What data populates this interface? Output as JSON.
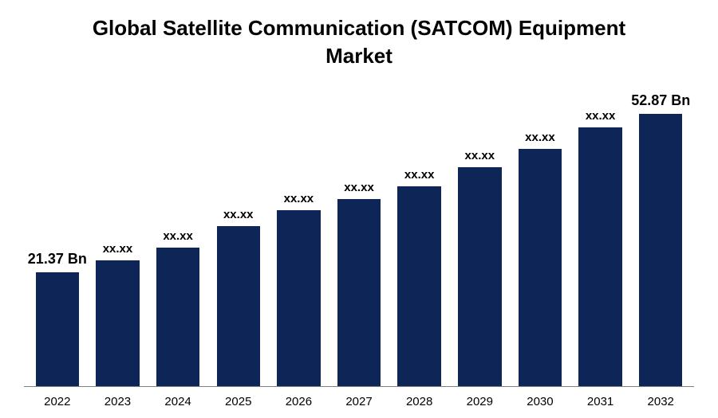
{
  "chart": {
    "type": "bar",
    "title": "Global Satellite Communication (SATCOM) Equipment Market",
    "title_fontsize": 26,
    "title_fontweight": "700",
    "title_color": "#000000",
    "background_color": "#ffffff",
    "axis_line_color": "#808080",
    "bar_color": "#0e2558",
    "bar_width_ratio": 0.72,
    "xlabel_fontsize": 15,
    "value_label_fontsize": 15,
    "value_label_fontsize_first_last": 18,
    "y_max": 55,
    "bars": [
      {
        "year": "2022",
        "value": 21.37,
        "label": "21.37 Bn",
        "highlight": true
      },
      {
        "year": "2023",
        "value": 23.5,
        "label": "xx.xx",
        "highlight": false
      },
      {
        "year": "2024",
        "value": 26.0,
        "label": "xx.xx",
        "highlight": false
      },
      {
        "year": "2025",
        "value": 30.0,
        "label": "xx.xx",
        "highlight": false
      },
      {
        "year": "2026",
        "value": 33.0,
        "label": "xx.xx",
        "highlight": false
      },
      {
        "year": "2027",
        "value": 35.0,
        "label": "xx.xx",
        "highlight": false
      },
      {
        "year": "2028",
        "value": 37.5,
        "label": "xx.xx",
        "highlight": false
      },
      {
        "year": "2029",
        "value": 41.0,
        "label": "xx.xx",
        "highlight": false
      },
      {
        "year": "2030",
        "value": 44.5,
        "label": "xx.xx",
        "highlight": false
      },
      {
        "year": "2031",
        "value": 48.5,
        "label": "xx.xx",
        "highlight": false
      },
      {
        "year": "2032",
        "value": 52.87,
        "label": "52.87 Bn",
        "highlight": true
      }
    ]
  }
}
